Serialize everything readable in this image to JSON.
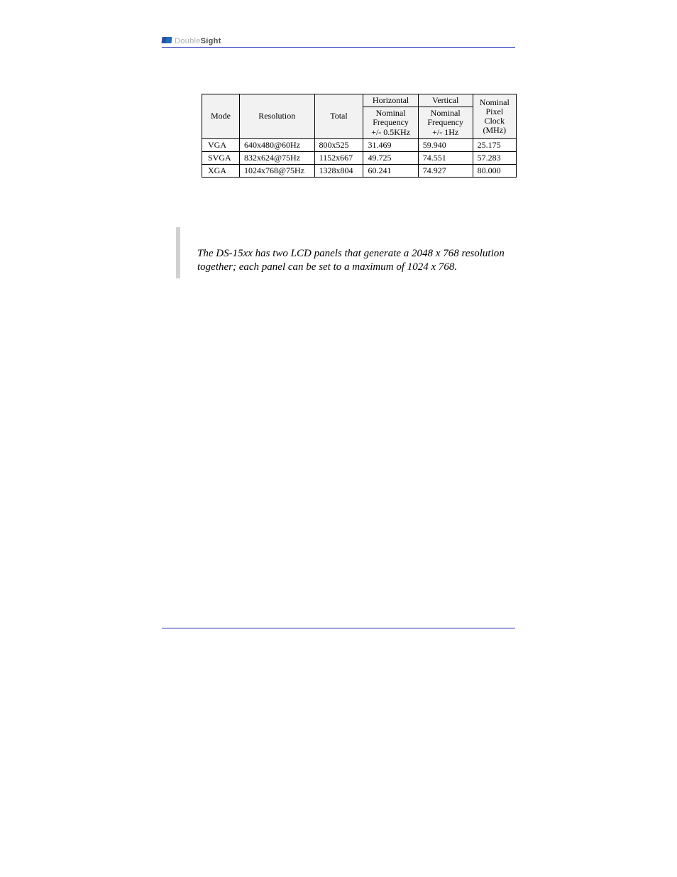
{
  "header": {
    "logo_part1": "Double",
    "logo_part2": "Sight"
  },
  "table": {
    "type": "table",
    "background_color": "#ffffff",
    "header_bg": "#f2f2f2",
    "border_color": "#000000",
    "font_size_pt": 9,
    "columns": {
      "mode": "Mode",
      "resolution": "Resolution",
      "total": "Total",
      "horizontal_group": "Horizontal",
      "vertical_group": "Vertical",
      "horiz_sub": "Nominal Frequency +/- 0.5KHz",
      "vert_sub": "Nominal Frequency +/- 1Hz",
      "pixel_clock": "Nominal Pixel Clock (MHz)"
    },
    "rows": [
      {
        "mode": "VGA",
        "resolution": "640x480@60Hz",
        "total": "800x525",
        "horiz": "31.469",
        "vert": "59.940",
        "px": "25.175"
      },
      {
        "mode": "SVGA",
        "resolution": "832x624@75Hz",
        "total": "1152x667",
        "horiz": "49.725",
        "vert": "74.551",
        "px": "57.283"
      },
      {
        "mode": "XGA",
        "resolution": "1024x768@75Hz",
        "total": "1328x804",
        "horiz": "60.241",
        "vert": "74.927",
        "px": "80.000"
      }
    ]
  },
  "note": {
    "text": "The DS-15xx has two LCD panels that generate a 2048 x 768 resolution together; each panel can be set to a maximum of 1024 x 768.",
    "bar_color": "#d0d0d0",
    "font_style": "italic",
    "font_size_pt": 11
  },
  "rules": {
    "color": "#1b2db3"
  }
}
